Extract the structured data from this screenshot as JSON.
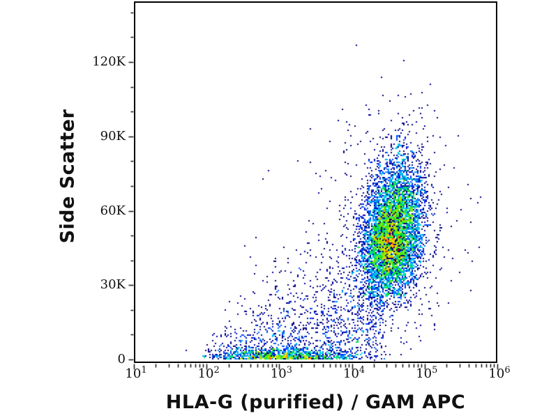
{
  "chart_data": {
    "type": "scatter",
    "subtype": "flow-cytometry-pseudocolor-density",
    "title": "",
    "xlabel": "HLA-G (purified) / GAM APC",
    "ylabel": "Side Scatter",
    "x_scale": "log",
    "x_log10_min": 1,
    "x_log10_max": 6,
    "x_tick_base": "10",
    "x_ticks": [
      {
        "exp": "1",
        "log10": 1
      },
      {
        "exp": "2",
        "log10": 2
      },
      {
        "exp": "3",
        "log10": 3
      },
      {
        "exp": "4",
        "log10": 4
      },
      {
        "exp": "5",
        "log10": 5
      },
      {
        "exp": "6",
        "log10": 6
      }
    ],
    "y_min": 0,
    "y_max": 144000,
    "y_ticks": [
      {
        "label": "0",
        "value": 0
      },
      {
        "label": "30K",
        "value": 30000
      },
      {
        "label": "60K",
        "value": 60000
      },
      {
        "label": "90K",
        "value": 90000
      },
      {
        "label": "120K",
        "value": 120000
      }
    ],
    "y_minor_step": 10000,
    "grid": false,
    "legend": null,
    "seed": 1337,
    "palette": {
      "background": "#ffffff",
      "axis": "#000000",
      "outlier_point": "#000080",
      "density_stops": [
        {
          "t": 0.0,
          "color": "#000080"
        },
        {
          "t": 0.14,
          "color": "#0000ee"
        },
        {
          "t": 0.3,
          "color": "#0070ff"
        },
        {
          "t": 0.45,
          "color": "#00d8ff"
        },
        {
          "t": 0.58,
          "color": "#00e030"
        },
        {
          "t": 0.7,
          "color": "#86f000"
        },
        {
          "t": 0.8,
          "color": "#ffd800"
        },
        {
          "t": 0.9,
          "color": "#ff7800"
        },
        {
          "t": 1.0,
          "color": "#ee1800"
        }
      ]
    },
    "populations": [
      {
        "name": "hla-g-positive-main-cluster",
        "kind": "gauss2d",
        "n": 6200,
        "center_log10x": 4.56,
        "center_y": 49500,
        "sigma_log10x": 0.2,
        "sigma_y_up": 15500,
        "sigma_y_down": 11500,
        "tilt": 0.25
      },
      {
        "name": "main-cluster-sparse-halo",
        "kind": "gauss2d",
        "n": 650,
        "center_log10x": 4.5,
        "center_y": 46000,
        "sigma_log10x": 0.42,
        "sigma_y_up": 24000,
        "sigma_y_down": 19000,
        "tilt": 0.1
      },
      {
        "name": "debris-fan-low-mid",
        "kind": "fan",
        "n": 1450,
        "log10x_start": 2.15,
        "log10x_span": 2.55,
        "sigma_log10x": 0.22,
        "y_spread_base": 4000,
        "y_spread_slope": 26000
      },
      {
        "name": "low-ssc-axis-band",
        "kind": "band",
        "n": 1000,
        "center_log10x": 3.08,
        "sigma_log10x": 0.48,
        "sigma_y": 2300,
        "log10x_clip_min": 1.95,
        "log10x_clip_max": 4.35
      }
    ]
  }
}
